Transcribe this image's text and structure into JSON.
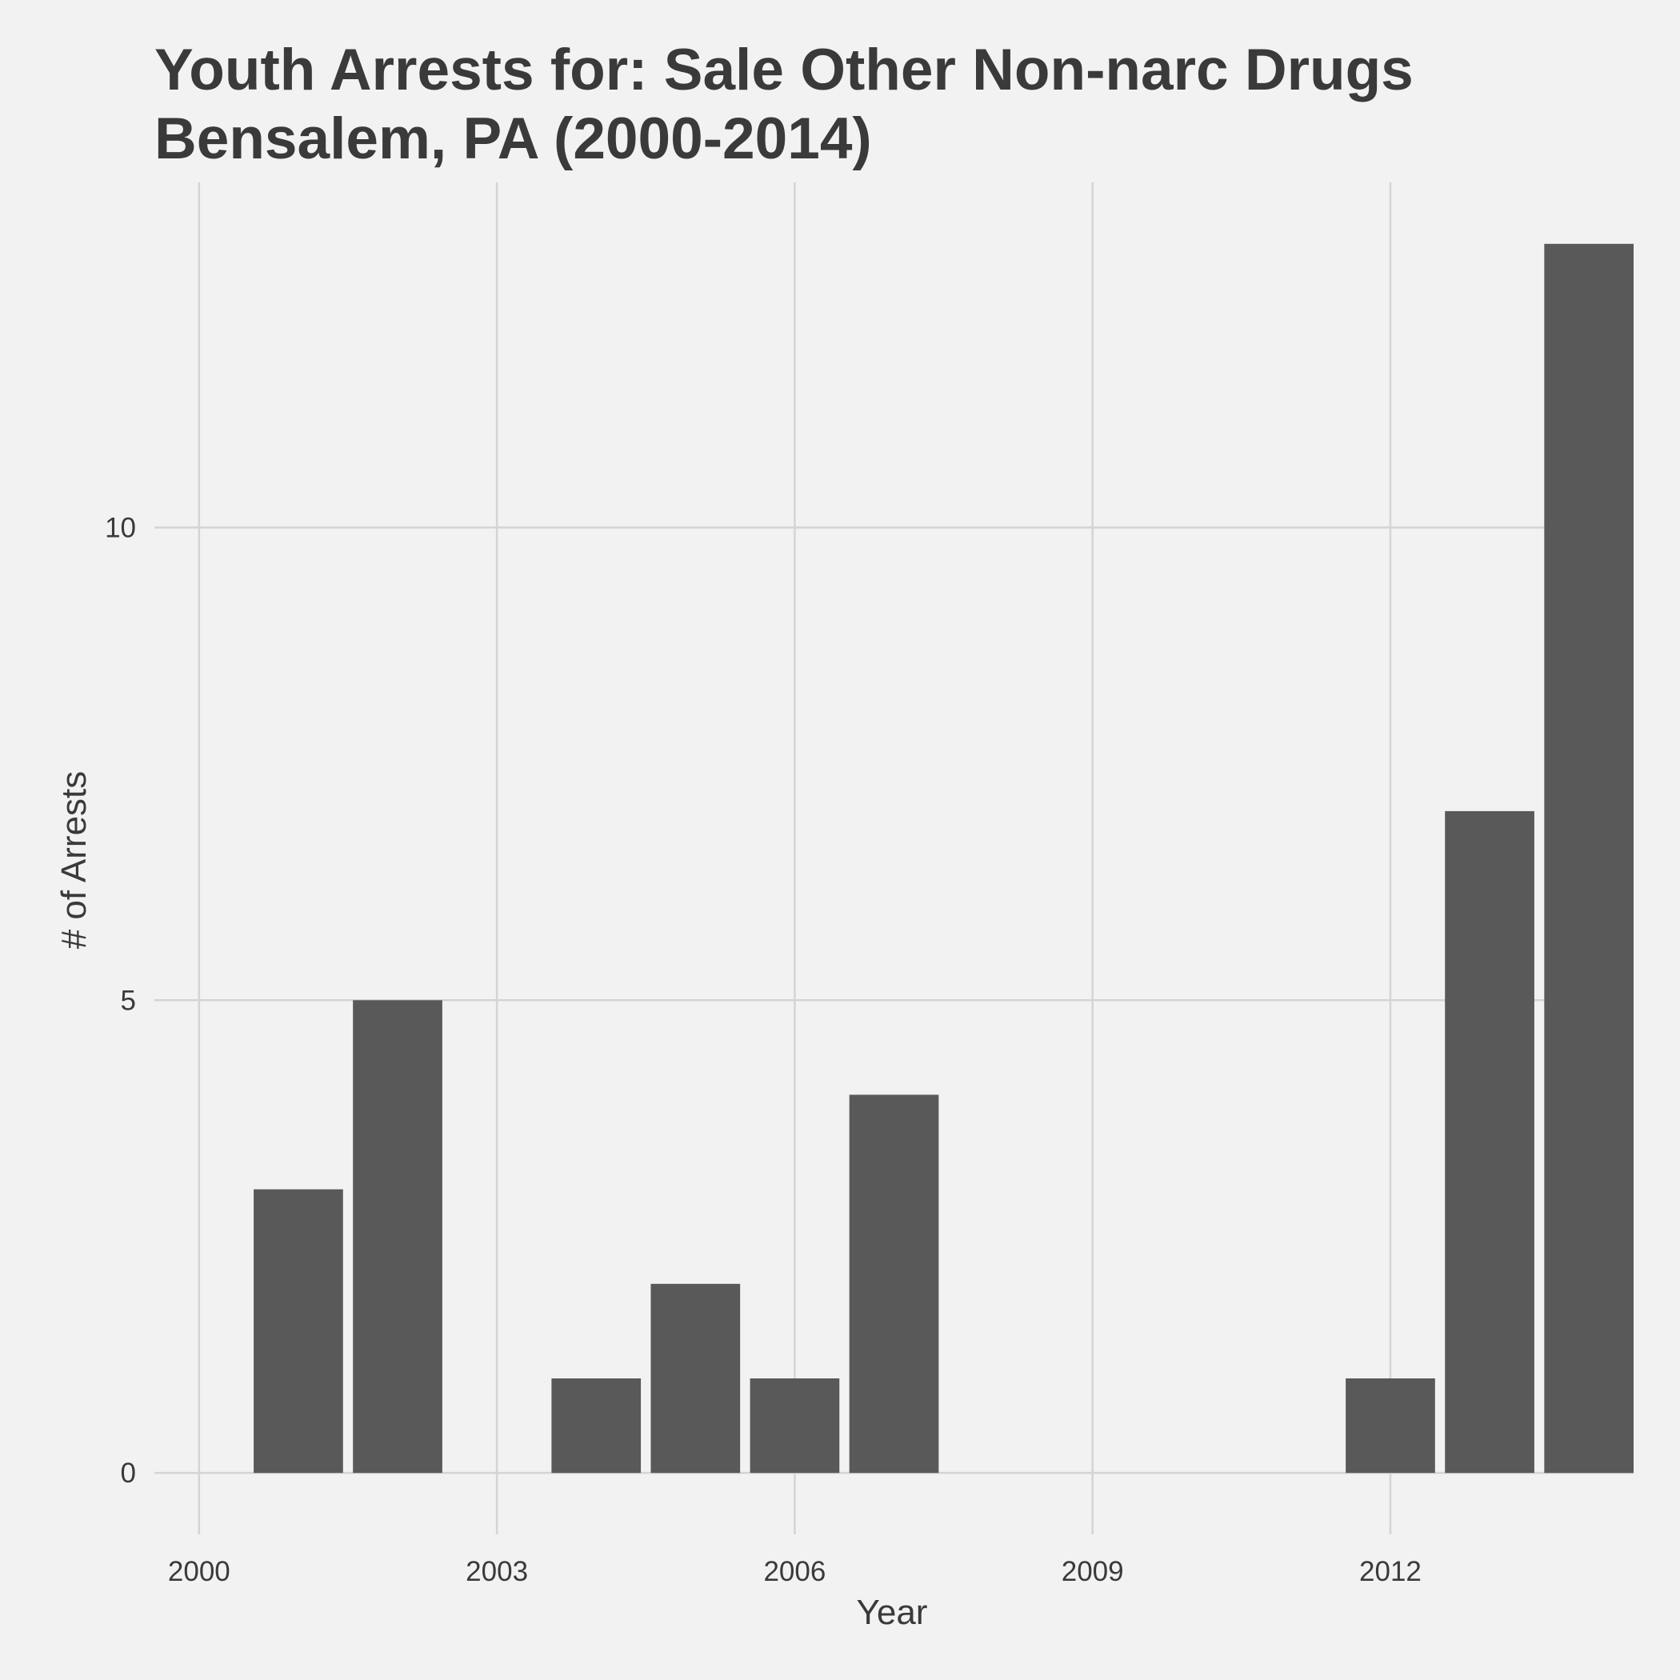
{
  "chart_data": {
    "type": "bar",
    "title": [
      "Youth Arrests for: Sale Other Non-narc Drugs",
      "Bensalem, PA (2000-2014)"
    ],
    "xlabel": "Year",
    "ylabel": "# of Arrests",
    "x": [
      2001,
      2002,
      2004,
      2005,
      2006,
      2007,
      2012,
      2013,
      2014
    ],
    "values": [
      3,
      5,
      1,
      2,
      1,
      4,
      1,
      7,
      13
    ],
    "x_ticks": [
      2000,
      2003,
      2006,
      2009,
      2012
    ],
    "y_ticks": [
      0,
      5,
      10
    ],
    "xlim": [
      1999.55,
      2014.45
    ],
    "ylim": [
      -0.65,
      13.65
    ],
    "bar_width": 0.9,
    "grid": true,
    "legend": "none",
    "colors": {
      "bar": "#595959",
      "background": "#f2f2f2",
      "grid": "#d4d4d4",
      "text": "#3a3a3a"
    }
  }
}
